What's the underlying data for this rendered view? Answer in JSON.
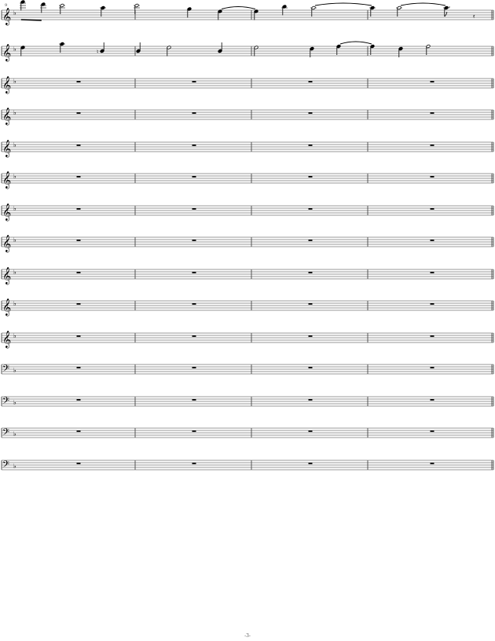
{
  "page_number": "-3-",
  "measure_number": "9",
  "key_signature": "F major (1 flat)",
  "staves": [
    {
      "clef": "treble",
      "content": "notes"
    },
    {
      "clef": "treble",
      "content": "notes"
    },
    {
      "clef": "treble",
      "content": "rests"
    },
    {
      "clef": "treble",
      "content": "rests"
    },
    {
      "clef": "treble",
      "content": "rests"
    },
    {
      "clef": "treble",
      "content": "rests"
    },
    {
      "clef": "treble",
      "content": "rests"
    },
    {
      "clef": "treble",
      "content": "rests"
    },
    {
      "clef": "treble",
      "content": "rests"
    },
    {
      "clef": "treble",
      "content": "rests"
    },
    {
      "clef": "treble",
      "content": "rests"
    },
    {
      "clef": "bass",
      "content": "rests"
    },
    {
      "clef": "bass",
      "content": "rests"
    },
    {
      "clef": "bass",
      "content": "rests"
    },
    {
      "clef": "bass",
      "content": "rests"
    }
  ],
  "measures_per_system": 4,
  "staff1_notes": [
    {
      "pitch": "F6",
      "dur": "8"
    },
    {
      "pitch": "D6",
      "dur": "8"
    },
    {
      "pitch": "C6",
      "dur": "h"
    },
    {
      "pitch": "A5",
      "dur": "q"
    },
    {
      "pitch": "C6",
      "dur": "h"
    },
    {
      "pitch": "G5",
      "dur": "q"
    },
    {
      "pitch": "E5",
      "dur": "q",
      "tie": true
    },
    {
      "pitch": "E5",
      "dur": "q"
    },
    {
      "pitch": "B5",
      "dur": "q"
    },
    {
      "pitch": "A5",
      "dur": "h",
      "tie": true
    },
    {
      "pitch": "A5",
      "dur": "q"
    },
    {
      "pitch": "A5",
      "dur": "h",
      "tie": true
    },
    {
      "pitch": "A5",
      "dur": "8."
    },
    {
      "pitch": "rest",
      "dur": "16"
    }
  ],
  "staff2_notes": [
    {
      "pitch": "E5",
      "dur": "q"
    },
    {
      "pitch": "A5",
      "dur": "q"
    },
    {
      "pitch": "B4",
      "dur": "q",
      "accidental": "natural"
    },
    {
      "pitch": "B4",
      "dur": "q"
    },
    {
      "pitch": "E5",
      "dur": "h"
    },
    {
      "pitch": "B4",
      "dur": "q"
    },
    {
      "pitch": "E5",
      "dur": "h"
    },
    {
      "pitch": "D5",
      "dur": "q"
    },
    {
      "pitch": "F5",
      "dur": "q",
      "tie": true
    },
    {
      "pitch": "F5",
      "dur": "q"
    },
    {
      "pitch": "D5",
      "dur": "q"
    },
    {
      "pitch": "F5",
      "dur": "h"
    }
  ]
}
